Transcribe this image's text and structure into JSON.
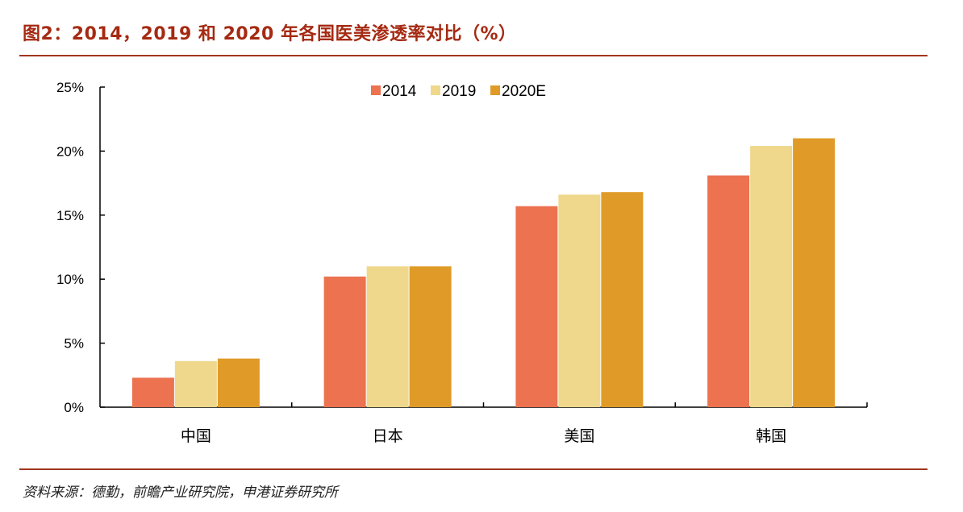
{
  "figure": {
    "title": "图2：2014，2019 和 2020 年各国医美渗透率对比（%）",
    "source": "资料来源：德勤，前瞻产业研究院，申港证券研究所"
  },
  "chart_data": {
    "type": "bar",
    "categories": [
      "中国",
      "日本",
      "美国",
      "韩国"
    ],
    "series": [
      {
        "name": "2014",
        "color": "#ec7250",
        "values": [
          2.3,
          10.2,
          15.7,
          18.1
        ]
      },
      {
        "name": "2019",
        "color": "#efd88c",
        "values": [
          3.6,
          11.0,
          16.6,
          20.4
        ]
      },
      {
        "name": "2020E",
        "color": "#df9a28",
        "values": [
          3.8,
          11.0,
          16.8,
          21.0
        ]
      }
    ],
    "ylim": [
      0,
      25
    ],
    "yticks": [
      0,
      5,
      10,
      15,
      20,
      25
    ],
    "ytick_labels": [
      "0%",
      "5%",
      "10%",
      "15%",
      "20%",
      "25%"
    ],
    "grid": false,
    "legend_position": "top-center"
  }
}
